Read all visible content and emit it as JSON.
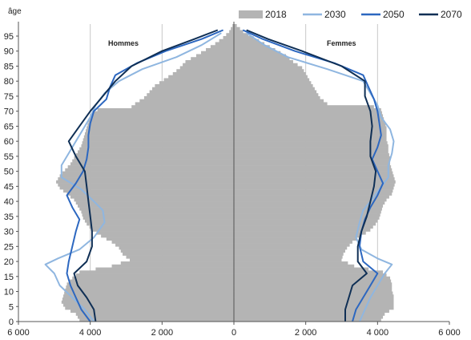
{
  "chart_data": {
    "type": "bar",
    "subtype": "population-pyramid",
    "ylabel": "âge",
    "panel_labels": {
      "left": "Hommes",
      "right": "Femmes"
    },
    "xlim": [
      -6000,
      6000
    ],
    "ylim": [
      0,
      99
    ],
    "x_ticks": [
      -6000,
      -4000,
      -2000,
      0,
      2000,
      4000,
      6000
    ],
    "x_tick_labels": [
      "6 000",
      "4 000",
      "2 000",
      "0",
      "2 000",
      "4 000",
      "6 000"
    ],
    "y_ticks": [
      0,
      5,
      10,
      15,
      20,
      25,
      30,
      35,
      40,
      45,
      50,
      55,
      60,
      65,
      70,
      75,
      80,
      85,
      90,
      95
    ],
    "grid": "vertical",
    "legend_position": "top-right",
    "colors": {
      "2018": "#b4b4b4",
      "2030": "#8fb6e0",
      "2050": "#2c67c0",
      "2070": "#0f2f55"
    },
    "series": [
      {
        "name": "2018",
        "render": "bars",
        "ages": [
          0,
          2,
          4,
          6,
          8,
          10,
          12,
          14,
          16,
          18,
          20,
          22,
          24,
          26,
          28,
          30,
          32,
          34,
          36,
          38,
          40,
          42,
          44,
          46,
          48,
          50,
          52,
          54,
          56,
          58,
          60,
          62,
          64,
          66,
          68,
          70,
          71,
          72,
          74,
          76,
          78,
          80,
          82,
          84,
          86,
          88,
          90,
          92,
          94,
          96,
          98
        ],
        "men": [
          4300,
          4400,
          4700,
          4800,
          4750,
          4700,
          4650,
          4500,
          4300,
          3400,
          2900,
          3100,
          3200,
          3400,
          3700,
          3950,
          4100,
          4200,
          4250,
          4350,
          4450,
          4650,
          4850,
          4950,
          4850,
          4700,
          4550,
          4450,
          4350,
          4250,
          4200,
          4150,
          4100,
          4050,
          4000,
          3800,
          2850,
          2750,
          2500,
          2350,
          2200,
          1950,
          1700,
          1500,
          1350,
          1050,
          780,
          520,
          300,
          130,
          40
        ],
        "women": [
          4100,
          4200,
          4450,
          4450,
          4450,
          4400,
          4400,
          4350,
          4150,
          3350,
          3000,
          3050,
          3150,
          3300,
          3550,
          3800,
          3950,
          4050,
          4100,
          4150,
          4250,
          4400,
          4450,
          4500,
          4450,
          4400,
          4350,
          4350,
          4300,
          4300,
          4250,
          4250,
          4250,
          4200,
          4150,
          4100,
          3900,
          2600,
          2400,
          2300,
          2200,
          2100,
          2000,
          1900,
          1650,
          1450,
          1150,
          850,
          550,
          260,
          80
        ]
      },
      {
        "name": "2030",
        "render": "line",
        "ages": [
          0,
          4,
          8,
          12,
          16,
          19,
          21,
          24,
          28,
          33,
          37,
          40,
          44,
          48,
          52,
          56,
          60,
          64,
          68,
          72,
          76,
          80,
          84,
          88,
          92,
          96
        ],
        "men": [
          3900,
          4150,
          4500,
          4850,
          5000,
          5250,
          4900,
          4300,
          3900,
          3600,
          3650,
          3900,
          4250,
          4800,
          4800,
          4600,
          4400,
          4200,
          4000,
          3850,
          3600,
          3200,
          2550,
          1600,
          900,
          350
        ],
        "women": [
          3500,
          3650,
          3800,
          4000,
          4200,
          4400,
          4000,
          3550,
          3400,
          3500,
          3600,
          3800,
          4050,
          4300,
          4300,
          4400,
          4450,
          4350,
          4100,
          4000,
          3800,
          3600,
          2600,
          1500,
          850,
          350
        ]
      },
      {
        "name": "2050",
        "render": "line",
        "ages": [
          0,
          4,
          8,
          12,
          16,
          20,
          25,
          30,
          34,
          38,
          42,
          46,
          50,
          54,
          58,
          62,
          66,
          70,
          74,
          78,
          82,
          86,
          90,
          94,
          97
        ],
        "men": [
          4000,
          4250,
          4400,
          4550,
          4650,
          4600,
          4500,
          4400,
          4300,
          4500,
          4650,
          4400,
          4200,
          4100,
          4050,
          4050,
          4000,
          3900,
          3550,
          3450,
          3300,
          2700,
          1900,
          900,
          300
        ],
        "women": [
          3300,
          3400,
          3600,
          3800,
          4000,
          3600,
          3500,
          3550,
          3650,
          3800,
          4000,
          4150,
          4000,
          3850,
          4000,
          4100,
          4050,
          4000,
          3900,
          3750,
          3600,
          2800,
          1700,
          800,
          250
        ]
      },
      {
        "name": "2070",
        "render": "line",
        "ages": [
          0,
          4,
          8,
          12,
          16,
          20,
          25,
          30,
          35,
          40,
          45,
          50,
          55,
          60,
          65,
          70,
          75,
          80,
          85,
          90,
          94,
          97
        ],
        "men": [
          3850,
          3900,
          4100,
          4350,
          4450,
          4100,
          3950,
          3950,
          4000,
          4050,
          4100,
          4150,
          4400,
          4600,
          4300,
          4000,
          3650,
          3300,
          2850,
          2000,
          1100,
          450
        ],
        "women": [
          3100,
          3100,
          3200,
          3300,
          3700,
          3450,
          3450,
          3550,
          3700,
          3800,
          3900,
          3950,
          3800,
          3800,
          3850,
          3800,
          3650,
          3650,
          3000,
          1900,
          950,
          350
        ]
      }
    ]
  }
}
